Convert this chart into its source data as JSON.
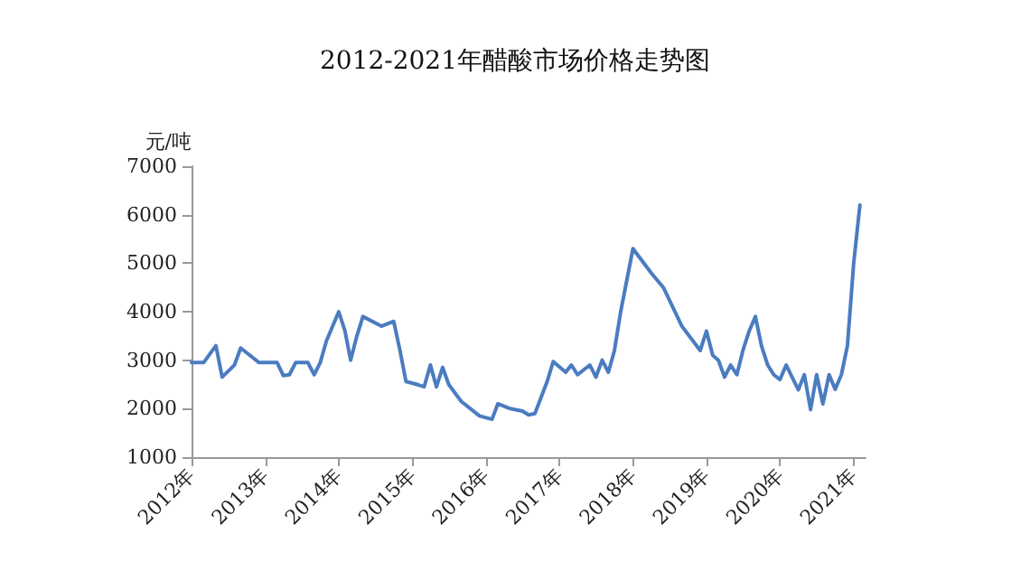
{
  "chart_data": {
    "type": "line",
    "title": "2012-2021年醋酸市场价格走势图",
    "ylabel": "元/吨",
    "x": [
      "2012-01",
      "2012-03",
      "2012-05",
      "2012-06",
      "2012-08",
      "2012-09",
      "2012-11",
      "2012-12",
      "2013-03",
      "2013-04",
      "2013-05",
      "2013-06",
      "2013-08",
      "2013-09",
      "2013-10",
      "2013-11",
      "2014-01",
      "2014-02",
      "2014-03",
      "2014-04",
      "2014-05",
      "2014-08",
      "2014-10",
      "2014-11",
      "2014-12",
      "2015-02",
      "2015-03",
      "2015-04",
      "2015-05",
      "2015-06",
      "2015-07",
      "2015-09",
      "2015-12",
      "2016-02",
      "2016-03",
      "2016-05",
      "2016-07",
      "2016-08",
      "2016-09",
      "2016-11",
      "2016-12",
      "2017-02",
      "2017-03",
      "2017-04",
      "2017-06",
      "2017-07",
      "2017-08",
      "2017-09",
      "2017-10",
      "2017-11",
      "2018-01",
      "2018-04",
      "2018-06",
      "2018-09",
      "2018-12",
      "2019-01",
      "2019-02",
      "2019-03",
      "2019-04",
      "2019-05",
      "2019-06",
      "2019-07",
      "2019-08",
      "2019-09",
      "2019-10",
      "2019-11",
      "2019-12",
      "2020-01",
      "2020-02",
      "2020-03",
      "2020-04",
      "2020-05",
      "2020-06",
      "2020-07",
      "2020-08",
      "2020-09",
      "2020-10",
      "2020-11",
      "2020-12",
      "2021-01",
      "2021-02"
    ],
    "series": [
      {
        "color": "#4a7cc0",
        "values": [
          2950,
          2950,
          3300,
          2650,
          2900,
          3250,
          3050,
          2950,
          2950,
          2680,
          2700,
          2950,
          2950,
          2700,
          2950,
          3400,
          4000,
          3600,
          3000,
          3500,
          3900,
          3700,
          3800,
          3200,
          2560,
          2490,
          2450,
          2900,
          2450,
          2850,
          2500,
          2150,
          1850,
          1780,
          2100,
          2000,
          1950,
          1870,
          1900,
          2560,
          2970,
          2750,
          2900,
          2700,
          2900,
          2650,
          3000,
          2750,
          3200,
          4000,
          5300,
          4800,
          4500,
          3700,
          3200,
          3600,
          3100,
          3000,
          2650,
          2900,
          2700,
          3200,
          3600,
          3900,
          3300,
          2900,
          2700,
          2600,
          2900,
          2650,
          2390,
          2700,
          1980,
          2700,
          2100,
          2700,
          2400,
          2700,
          3300,
          5000,
          6200
        ]
      }
    ],
    "xlim": [
      "2012-01",
      "2021-03"
    ],
    "xticks": [
      {
        "value": "2012",
        "label": "2012年"
      },
      {
        "value": "2013",
        "label": "2013年"
      },
      {
        "value": "2014",
        "label": "2014年"
      },
      {
        "value": "2015",
        "label": "2015年"
      },
      {
        "value": "2016",
        "label": "2016年"
      },
      {
        "value": "2017",
        "label": "2017年"
      },
      {
        "value": "2018",
        "label": "2018年"
      },
      {
        "value": "2019",
        "label": "2019年"
      },
      {
        "value": "2020",
        "label": "2020年"
      },
      {
        "value": "2021",
        "label": "2021年"
      }
    ],
    "ylim": [
      1000,
      7000
    ],
    "yticks": [
      1000,
      2000,
      3000,
      4000,
      5000,
      6000,
      7000
    ],
    "grid": false,
    "marker": "none",
    "line_style": "solid"
  }
}
